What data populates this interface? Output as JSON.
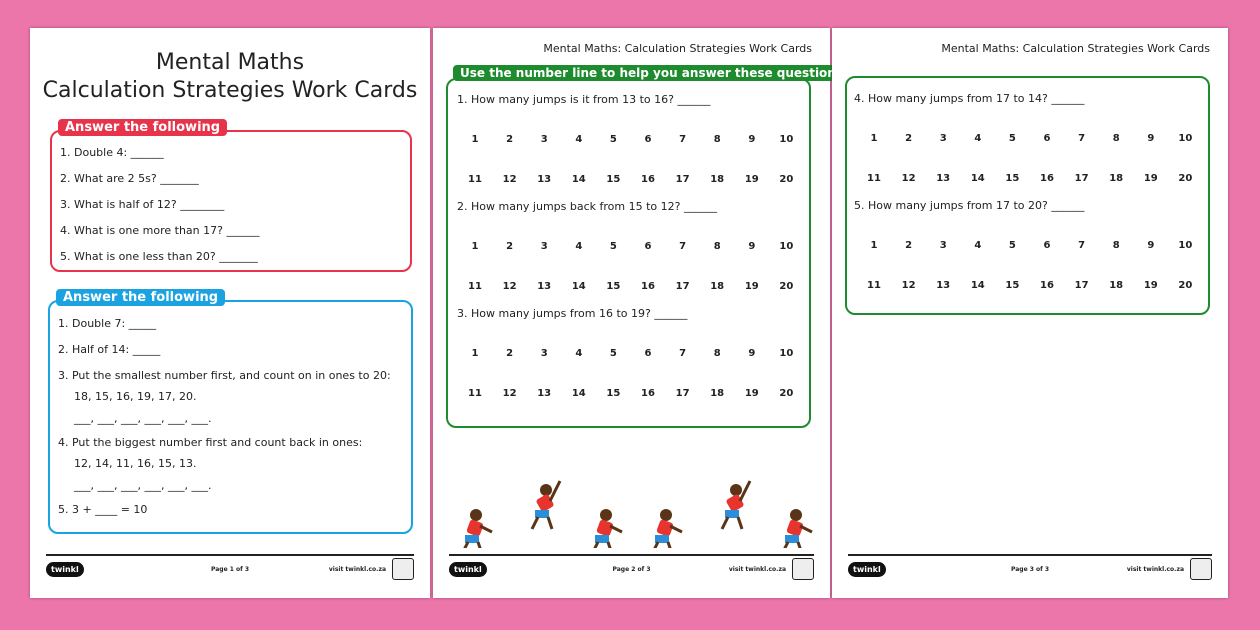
{
  "colors": {
    "background": "#ec76aa",
    "red": "#e8344a",
    "blue": "#1aa3e0",
    "green": "#1e8c2e"
  },
  "page1": {
    "title_line1": "Mental Maths",
    "title_line2": "Calculation Strategies Work Cards",
    "card1": {
      "tag": "Answer the following",
      "questions": [
        "1.  Double 4: ______",
        "2.  What are 2 5s? _______",
        "3.  What is half of 12? ________",
        "4.  What is one more than 17? ______",
        "5.  What is one less than 20? _______"
      ]
    },
    "card2": {
      "tag": "Answer the following",
      "lines": [
        "1.  Double 7: _____",
        "2.  Half of 14: _____",
        "3.  Put the smallest number first, and count on in ones to 20:",
        "18, 15, 16, 19, 17, 20.",
        "___, ___, ___, ___, ___, ___.",
        "4.  Put the biggest number first and count back in ones:",
        "12, 14, 11, 16, 15, 13.",
        "___, ___, ___, ___, ___, ___.",
        "5.  3 + ____ = 10"
      ]
    },
    "footer": {
      "logo": "twinkl",
      "page": "Page 1 of 3",
      "visit": "visit twinkl.co.za"
    }
  },
  "page2": {
    "header": "Mental Maths: Calculation Strategies Work Cards",
    "tag": "Use the number line to help you answer these questions.",
    "questions": [
      "1.  How many jumps is it from 13 to 16? ______",
      "2.  How many jumps back from 15 to 12? ______",
      "3.  How many jumps from 16 to 19? ______"
    ],
    "footer": {
      "logo": "twinkl",
      "page": "Page 2 of 3",
      "visit": "visit twinkl.co.za"
    }
  },
  "page3": {
    "header": "Mental Maths: Calculation Strategies Work Cards",
    "questions": [
      "4.  How many jumps from 17 to 14? ______",
      "5.  How many jumps from 17 to 20? ______"
    ],
    "footer": {
      "logo": "twinkl",
      "page": "Page 3 of 3",
      "visit": "visit twinkl.co.za"
    }
  },
  "number_line": {
    "row1": [
      "1",
      "2",
      "3",
      "4",
      "5",
      "6",
      "7",
      "8",
      "9",
      "10"
    ],
    "row2": [
      "11",
      "12",
      "13",
      "14",
      "15",
      "16",
      "17",
      "18",
      "19",
      "20"
    ]
  }
}
